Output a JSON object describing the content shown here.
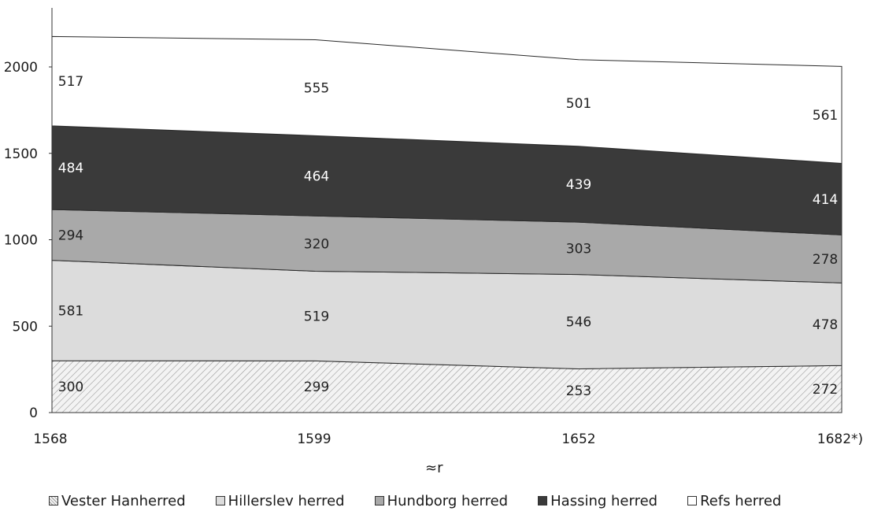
{
  "chart_data": {
    "type": "area",
    "stacked": true,
    "xlabel": "≈r",
    "categories": [
      "1568",
      "1599",
      "1652",
      "1682*)"
    ],
    "ylim": [
      0,
      2000
    ],
    "yticks": [
      0,
      500,
      1000,
      1500,
      2000
    ],
    "series": [
      {
        "name": "Vester Hanherred",
        "values": [
          300,
          299,
          253,
          272
        ],
        "color": "#f2f2f2",
        "pattern": "hatch",
        "label_color": "#222222"
      },
      {
        "name": "Hillerslev herred",
        "values": [
          581,
          519,
          546,
          478
        ],
        "color": "#dcdcdc",
        "label_color": "#222222"
      },
      {
        "name": "Hundborg herred",
        "values": [
          294,
          320,
          303,
          278
        ],
        "color": "#a9a9a9",
        "label_color": "#222222"
      },
      {
        "name": "Hassing herred",
        "values": [
          484,
          464,
          439,
          414
        ],
        "color": "#3a3a3a",
        "label_color": "#ffffff"
      },
      {
        "name": "Refs herred",
        "values": [
          517,
          555,
          501,
          561
        ],
        "color": "#ffffff",
        "label_color": "#222222"
      }
    ],
    "legend_position": "bottom"
  }
}
